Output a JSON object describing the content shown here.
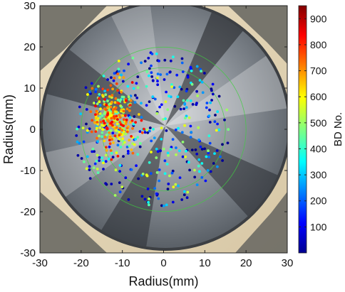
{
  "chart_data": {
    "type": "scatter",
    "title": "",
    "xlabel": "Radius(mm)",
    "ylabel": "Radius(mm)",
    "xlim": [
      -30,
      30
    ],
    "ylim": [
      -30,
      30
    ],
    "xticks": [
      "-30",
      "-20",
      "-10",
      "0",
      "10",
      "20",
      "30"
    ],
    "yticks": [
      "30",
      "20",
      "10",
      "0",
      "-10",
      "-20",
      "-30"
    ],
    "colorbar": {
      "label": "BD No.",
      "range": [
        0,
        950
      ],
      "ticks": [
        "900",
        "800",
        "700",
        "600",
        "500",
        "400",
        "300",
        "200",
        "100"
      ],
      "colormap": "jet"
    },
    "circles_mm": [
      15,
      20
    ],
    "background": "photo of polished metal disc in holder",
    "grid": false
  }
}
